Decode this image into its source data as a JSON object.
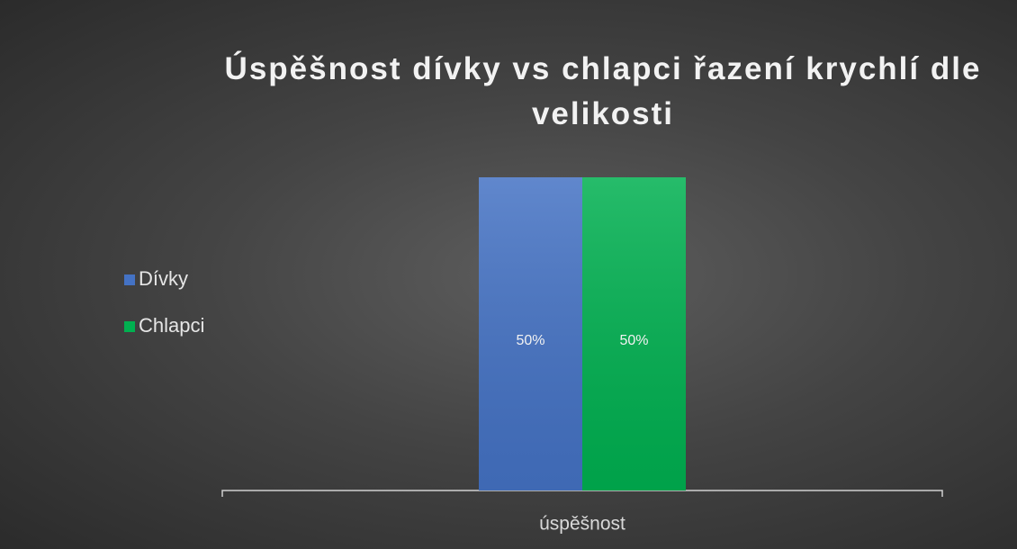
{
  "chart_data": {
    "type": "bar",
    "title": "Úspěšnost dívky vs chlapci řazení krychlí dle velikosti",
    "categories": [
      "úspěšnost"
    ],
    "series": [
      {
        "name": "Dívky",
        "color": "#4472c4",
        "values": [
          50
        ],
        "value_labels": [
          "50%"
        ]
      },
      {
        "name": "Chlapci",
        "color": "#00b050",
        "values": [
          50
        ],
        "value_labels": [
          "50%"
        ]
      }
    ],
    "ylim": [
      0,
      50
    ],
    "legend": "left"
  }
}
